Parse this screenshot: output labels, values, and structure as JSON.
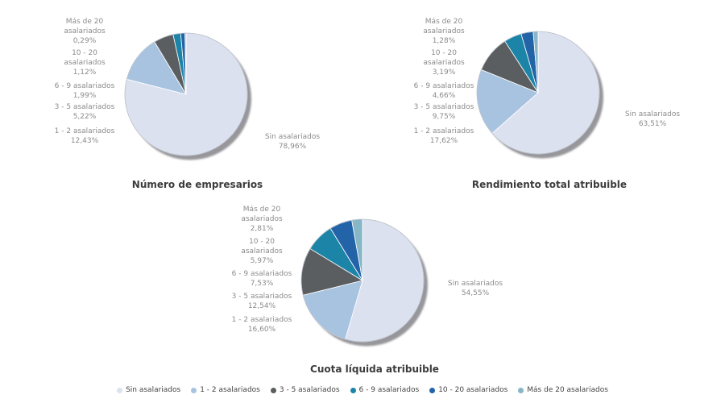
{
  "legend": {
    "items": [
      {
        "label": "Sin asalariados",
        "color": "#dce1f0"
      },
      {
        "label": "1 - 2 asalariados",
        "color": "#a8c3e0"
      },
      {
        "label": "3 - 5 asalariados",
        "color": "#5b5e60"
      },
      {
        "label": "6 - 9 asalariados",
        "color": "#1c84a7"
      },
      {
        "label": "10 - 20 asalariados",
        "color": "#2363a8"
      },
      {
        "label": "Más de 20 asalariados",
        "color": "#87b7c7"
      }
    ]
  },
  "chart_data": [
    {
      "type": "pie",
      "title": "Número de empresarios",
      "unit": "%",
      "legend_position": "bottom",
      "categories": [
        "Sin asalariados",
        "1 - 2 asalariados",
        "3 - 5 asalariados",
        "6 - 9 asalariados",
        "10 - 20 asalariados",
        "Más de 20 asalariados"
      ],
      "values": [
        78.96,
        12.43,
        5.22,
        1.99,
        1.12,
        0.29
      ],
      "value_labels": [
        "78,96%",
        "12,43%",
        "5,22%",
        "1,99%",
        "1,12%",
        "0,29%"
      ],
      "colors": [
        "#dce1f0",
        "#a8c3e0",
        "#5b5e60",
        "#1c84a7",
        "#2363a8",
        "#87b7c7"
      ],
      "label_lines": [
        [
          "Sin asalariados",
          "78,96%"
        ],
        [
          "1 - 2 asalariados",
          "12,43%"
        ],
        [
          "3 - 5 asalariados",
          "5,22%"
        ],
        [
          "6 - 9 asalariados",
          "1,99%"
        ],
        [
          "10 - 20",
          "asalariados",
          "1,12%"
        ],
        [
          "Más de 20",
          "asalariados",
          "0,29%"
        ]
      ]
    },
    {
      "type": "pie",
      "title": "Rendimiento total atribuible",
      "unit": "%",
      "legend_position": "bottom",
      "categories": [
        "Sin asalariados",
        "1 - 2 asalariados",
        "3 - 5 asalariados",
        "6 - 9 asalariados",
        "10 - 20 asalariados",
        "Más de 20 asalariados"
      ],
      "values": [
        63.51,
        17.62,
        9.75,
        4.66,
        3.19,
        1.28
      ],
      "value_labels": [
        "63,51%",
        "17,62%",
        "9,75%",
        "4,66%",
        "3,19%",
        "1,28%"
      ],
      "colors": [
        "#dce1f0",
        "#a8c3e0",
        "#5b5e60",
        "#1c84a7",
        "#2363a8",
        "#87b7c7"
      ],
      "label_lines": [
        [
          "Sin asalariados",
          "63,51%"
        ],
        [
          "1 - 2 asalariados",
          "17,62%"
        ],
        [
          "3 - 5 asalariados",
          "9,75%"
        ],
        [
          "6 - 9 asalariados",
          "4,66%"
        ],
        [
          "10 - 20",
          "asalariados",
          "3,19%"
        ],
        [
          "Más de 20",
          "asalariados",
          "1,28%"
        ]
      ]
    },
    {
      "type": "pie",
      "title": "Cuota líquida atribuible",
      "unit": "%",
      "legend_position": "bottom",
      "categories": [
        "Sin asalariados",
        "1 - 2 asalariados",
        "3 - 5 asalariados",
        "6 - 9 asalariados",
        "10 - 20 asalariados",
        "Más de 20 asalariados"
      ],
      "values": [
        54.55,
        16.6,
        12.54,
        7.53,
        5.97,
        2.81
      ],
      "value_labels": [
        "54,55%",
        "16,60%",
        "12,54%",
        "7,53%",
        "5,97%",
        "2,81%"
      ],
      "colors": [
        "#dce1f0",
        "#a8c3e0",
        "#5b5e60",
        "#1c84a7",
        "#2363a8",
        "#87b7c7"
      ],
      "label_lines": [
        [
          "Sin asalariados",
          "54,55%"
        ],
        [
          "1 - 2 asalariados",
          "16,60%"
        ],
        [
          "3 - 5 asalariados",
          "12,54%"
        ],
        [
          "6 - 9 asalariados",
          "7,53%"
        ],
        [
          "10 - 20",
          "asalariados",
          "5,97%"
        ],
        [
          "Más de 20",
          "asalariados",
          "2,81%"
        ]
      ]
    }
  ]
}
